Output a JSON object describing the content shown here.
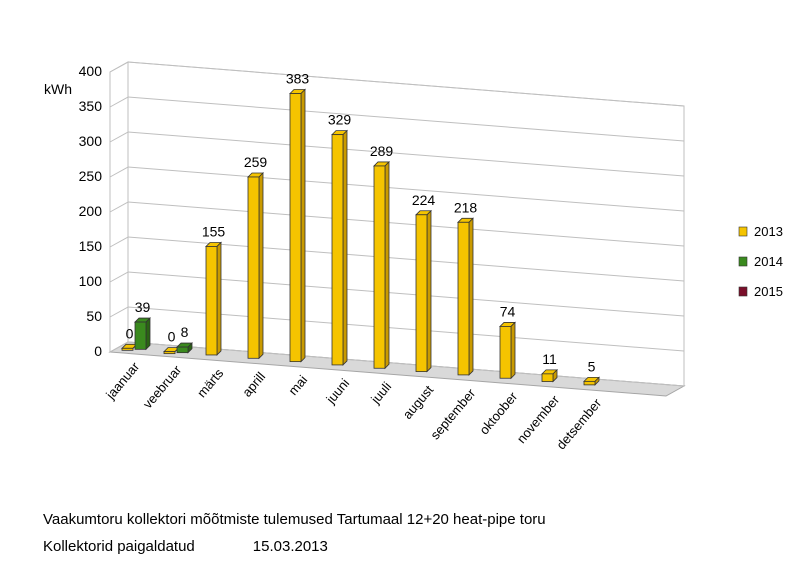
{
  "chart_data": {
    "type": "bar",
    "ylabel": "kWh",
    "ylim": [
      0,
      400
    ],
    "yticks": [
      0,
      50,
      100,
      150,
      200,
      250,
      300,
      350,
      400
    ],
    "categories": [
      "jaanuar",
      "veebruar",
      "märts",
      "aprill",
      "mai",
      "juuni",
      "juuli",
      "august",
      "september",
      "oktoober",
      "november",
      "detsember"
    ],
    "series": [
      {
        "name": "2013",
        "color": "#f5c400",
        "values": [
          0,
          0,
          155,
          259,
          383,
          329,
          289,
          224,
          218,
          74,
          11,
          5
        ]
      },
      {
        "name": "2014",
        "color": "#3a8a1e",
        "values": [
          39,
          8,
          null,
          null,
          null,
          null,
          null,
          null,
          null,
          null,
          null,
          null
        ]
      },
      {
        "name": "2015",
        "color": "#7a0f2a",
        "values": [
          null,
          null,
          null,
          null,
          null,
          null,
          null,
          null,
          null,
          null,
          null,
          null
        ]
      }
    ],
    "legend_position": "right",
    "grid": true
  },
  "caption": {
    "line1": "Vaakumtoru kollektori mõõtmiste tulemused Tartumaal 12+20 heat-pipe toru",
    "line2_label": "Kollektorid paigaldatud",
    "line2_date": "15.03.2013"
  }
}
